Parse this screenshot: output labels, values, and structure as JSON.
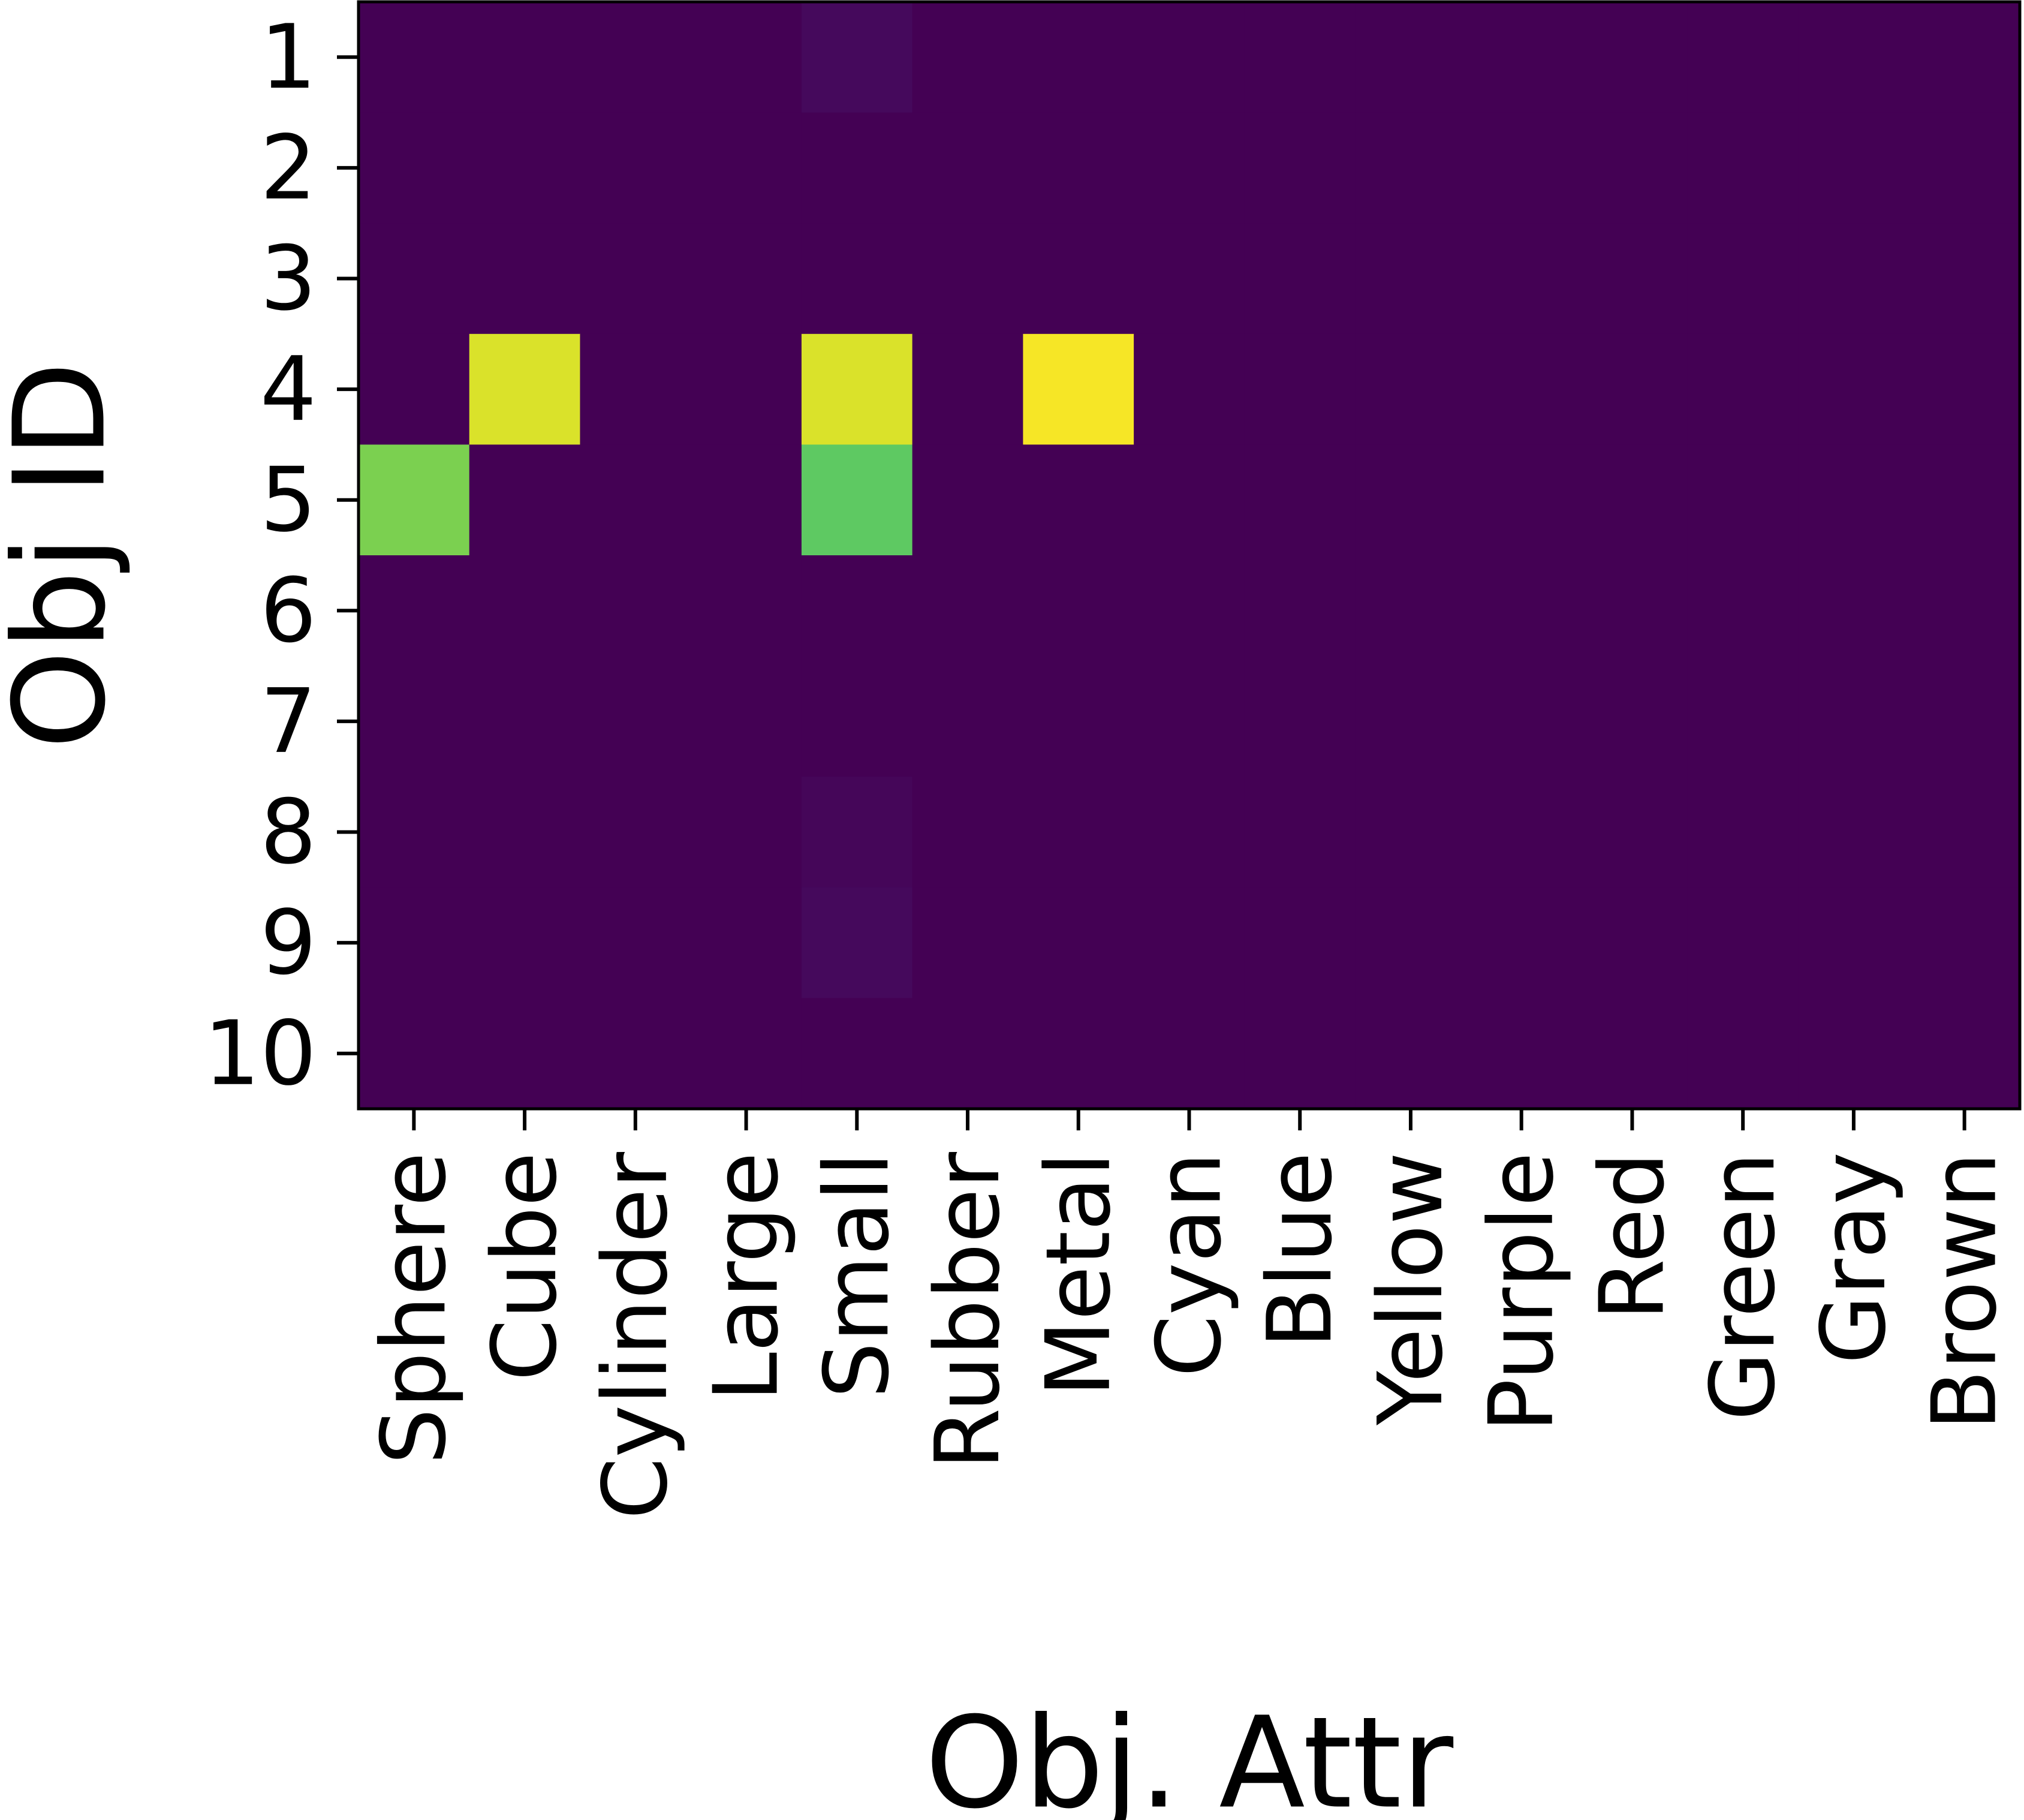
{
  "chart_data": {
    "type": "heatmap",
    "title": "",
    "xlabel": "Obj. Attr",
    "ylabel": "Obj ID",
    "x_categories": [
      "Sphere",
      "Cube",
      "Cylinder",
      "Large",
      "Small",
      "Rubber",
      "Metal",
      "Cyan",
      "Blue",
      "Yellow",
      "Purple",
      "Red",
      "Green",
      "Gray",
      "Brown"
    ],
    "y_categories": [
      "1",
      "2",
      "3",
      "4",
      "5",
      "6",
      "7",
      "8",
      "9",
      "10"
    ],
    "colormap": "viridis",
    "value_range": [
      0,
      1
    ],
    "grid": false,
    "values": [
      [
        0,
        0,
        0,
        0,
        0.03,
        0,
        0,
        0,
        0,
        0,
        0,
        0,
        0,
        0,
        0
      ],
      [
        0,
        0,
        0,
        0,
        0,
        0,
        0,
        0,
        0,
        0,
        0,
        0,
        0,
        0,
        0
      ],
      [
        0,
        0,
        0,
        0,
        0,
        0,
        0,
        0,
        0,
        0,
        0,
        0,
        0,
        0,
        0
      ],
      [
        0,
        0.95,
        0,
        0,
        0.95,
        0,
        0.99,
        0,
        0,
        0,
        0,
        0,
        0,
        0,
        0
      ],
      [
        0.8,
        0,
        0,
        0,
        0.75,
        0,
        0,
        0,
        0,
        0,
        0,
        0,
        0,
        0,
        0
      ],
      [
        0,
        0,
        0,
        0,
        0,
        0,
        0,
        0,
        0,
        0,
        0,
        0,
        0,
        0,
        0
      ],
      [
        0,
        0,
        0,
        0,
        0,
        0,
        0,
        0,
        0,
        0,
        0,
        0,
        0,
        0,
        0
      ],
      [
        0,
        0,
        0,
        0,
        0.02,
        0,
        0,
        0,
        0,
        0,
        0,
        0,
        0,
        0,
        0
      ],
      [
        0,
        0,
        0,
        0,
        0.03,
        0,
        0,
        0,
        0,
        0,
        0,
        0,
        0,
        0,
        0
      ],
      [
        0,
        0,
        0,
        0,
        0,
        0,
        0,
        0,
        0,
        0,
        0,
        0,
        0,
        0,
        0
      ]
    ]
  }
}
